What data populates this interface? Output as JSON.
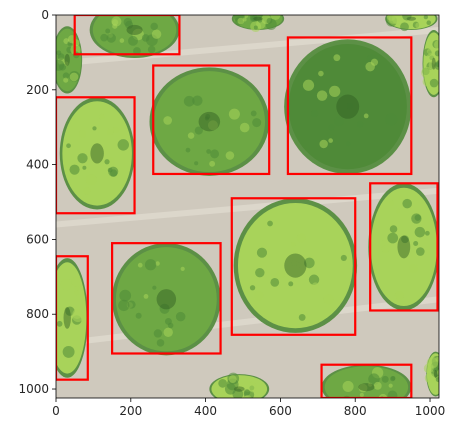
{
  "image": {
    "description_type": "aerial-orchard-photo",
    "colors": {
      "ground": "#cfc9bd",
      "canopy_dark": "#4f8a38",
      "canopy_mid": "#6ea844",
      "canopy_light": "#a8d35a",
      "box": "#ff0000"
    }
  },
  "axes": {
    "x_ticks": [
      "0",
      "200",
      "400",
      "600",
      "800",
      "1000"
    ],
    "y_ticks": [
      "0",
      "200",
      "400",
      "600",
      "800",
      "1000"
    ],
    "xlim": [
      0,
      1024
    ],
    "ylim": [
      1024,
      0
    ]
  },
  "boxes": [
    {
      "x1": 50,
      "y1": 0,
      "x2": 330,
      "y2": 105
    },
    {
      "x1": 0,
      "y1": 220,
      "x2": 210,
      "y2": 530
    },
    {
      "x1": 260,
      "y1": 135,
      "x2": 570,
      "y2": 425
    },
    {
      "x1": 620,
      "y1": 60,
      "x2": 950,
      "y2": 425
    },
    {
      "x1": 470,
      "y1": 490,
      "x2": 800,
      "y2": 855
    },
    {
      "x1": 840,
      "y1": 450,
      "x2": 1020,
      "y2": 790
    },
    {
      "x1": 150,
      "y1": 610,
      "x2": 440,
      "y2": 905
    },
    {
      "x1": 0,
      "y1": 645,
      "x2": 85,
      "y2": 975
    },
    {
      "x1": 710,
      "y1": 935,
      "x2": 950,
      "y2": 1024
    }
  ],
  "trees": [
    {
      "cx": 210,
      "cy": 40,
      "rx": 120,
      "ry": 75,
      "tone": "mid"
    },
    {
      "cx": 540,
      "cy": 10,
      "rx": 70,
      "ry": 30,
      "tone": "mid"
    },
    {
      "cx": 950,
      "cy": 10,
      "rx": 70,
      "ry": 30,
      "tone": "light"
    },
    {
      "cx": 30,
      "cy": 120,
      "rx": 40,
      "ry": 90,
      "tone": "mid"
    },
    {
      "cx": 1010,
      "cy": 130,
      "rx": 30,
      "ry": 90,
      "tone": "light"
    },
    {
      "cx": 110,
      "cy": 370,
      "rx": 100,
      "ry": 150,
      "tone": "light"
    },
    {
      "cx": 410,
      "cy": 285,
      "rx": 160,
      "ry": 145,
      "tone": "mid"
    },
    {
      "cx": 780,
      "cy": 245,
      "rx": 170,
      "ry": 180,
      "tone": "dark"
    },
    {
      "cx": 640,
      "cy": 670,
      "rx": 165,
      "ry": 180,
      "tone": "light"
    },
    {
      "cx": 930,
      "cy": 620,
      "rx": 95,
      "ry": 170,
      "tone": "light"
    },
    {
      "cx": 295,
      "cy": 760,
      "rx": 145,
      "ry": 150,
      "tone": "mid"
    },
    {
      "cx": 30,
      "cy": 810,
      "rx": 55,
      "ry": 160,
      "tone": "light"
    },
    {
      "cx": 830,
      "cy": 995,
      "rx": 120,
      "ry": 60,
      "tone": "mid"
    },
    {
      "cx": 490,
      "cy": 1000,
      "rx": 80,
      "ry": 40,
      "tone": "light"
    },
    {
      "cx": 1015,
      "cy": 960,
      "rx": 25,
      "ry": 60,
      "tone": "light"
    }
  ]
}
